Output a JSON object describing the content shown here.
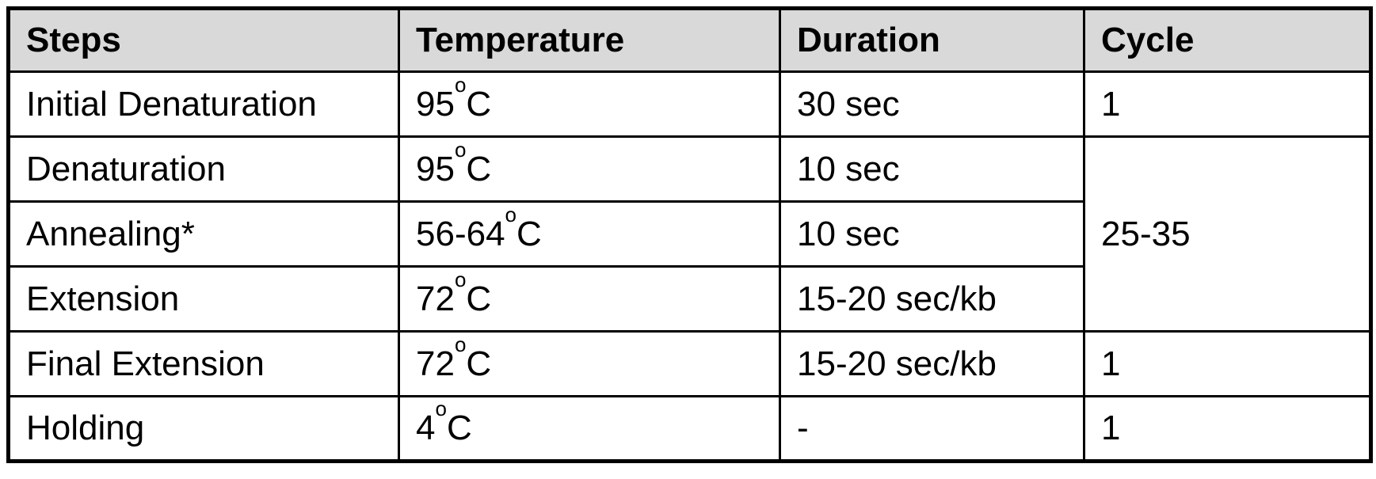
{
  "colors": {
    "page_bg": "#ffffff",
    "header_bg": "#d9d9d9",
    "border": "#000000",
    "text": "#000000"
  },
  "table": {
    "headers": [
      "Steps",
      "Temperature",
      "Duration",
      "Cycle"
    ],
    "rows": [
      {
        "step": "Initial Denaturation",
        "temp_base": "95",
        "temp_sup": "o",
        "temp_unit": "C",
        "duration": "30 sec",
        "cycle": "1"
      },
      {
        "step": "Denaturation",
        "temp_base": "95",
        "temp_sup": "o",
        "temp_unit": "C",
        "duration": "10 sec",
        "cycle": "25-35"
      },
      {
        "step": "Annealing*",
        "temp_base": "56-64",
        "temp_sup": "o",
        "temp_unit": "C",
        "duration": "10 sec"
      },
      {
        "step": "Extension",
        "temp_base": "72",
        "temp_sup": "o",
        "temp_unit": "C",
        "duration": "15-20 sec/kb"
      },
      {
        "step": "Final Extension",
        "temp_base": "72",
        "temp_sup": "o",
        "temp_unit": "C",
        "duration": "15-20 sec/kb",
        "cycle": "1"
      },
      {
        "step": "Holding",
        "temp_base": "4",
        "temp_sup": "o",
        "temp_unit": "C",
        "duration": "-",
        "cycle": "1"
      }
    ]
  }
}
